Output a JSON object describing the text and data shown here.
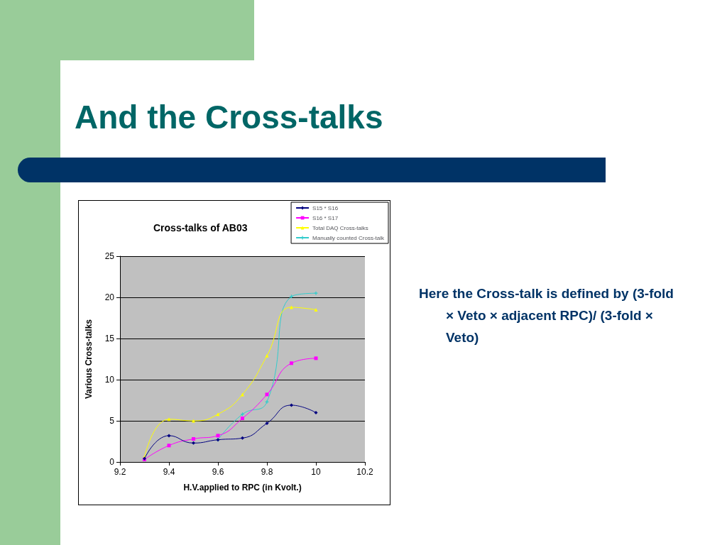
{
  "chart_data": {
    "type": "line",
    "title": "Cross-talks of AB03",
    "xlabel": "H.V.applied to RPC (in Kvolt.)",
    "ylabel": "Various Cross-talks",
    "annotations": [
      "And the Cross-talks",
      "Here the Cross-talk is defined by (3-fold × Veto × adjacent RPC)/ (3-fold × Veto)"
    ],
    "x": [
      9.3,
      9.4,
      9.5,
      9.6,
      9.7,
      9.8,
      9.9,
      10
    ],
    "series": [
      {
        "name": "S15 * S16",
        "color": "#000080",
        "marker": "diamond",
        "values": [
          0.4,
          3.2,
          2.3,
          2.7,
          2.9,
          4.7,
          6.9,
          6.0
        ]
      },
      {
        "name": "S16 * S17",
        "color": "#ff00ff",
        "marker": "square",
        "values": [
          0.3,
          2.0,
          2.8,
          3.2,
          5.3,
          8.2,
          12.0,
          12.6
        ]
      },
      {
        "name": "Total DAQ Cross-talks",
        "color": "#ffff00",
        "marker": "triangle",
        "values": [
          0.6,
          5.2,
          5.0,
          5.8,
          8.2,
          12.9,
          18.8,
          18.5
        ]
      },
      {
        "name": "Manually counted Cross-talk",
        "color": "#33cccc",
        "marker": "cross",
        "values": [
          null,
          null,
          null,
          2.7,
          5.8,
          7.3,
          20.1,
          20.5
        ]
      }
    ],
    "xlim": [
      9.2,
      10.2
    ],
    "xticks": [
      9.2,
      9.4,
      9.6,
      9.8,
      10,
      10.2
    ],
    "ylim": [
      0,
      25
    ],
    "yticks": [
      0,
      5,
      10,
      15,
      20,
      25
    ],
    "grid": "y",
    "legend": "top right",
    "line_style": "solid"
  }
}
